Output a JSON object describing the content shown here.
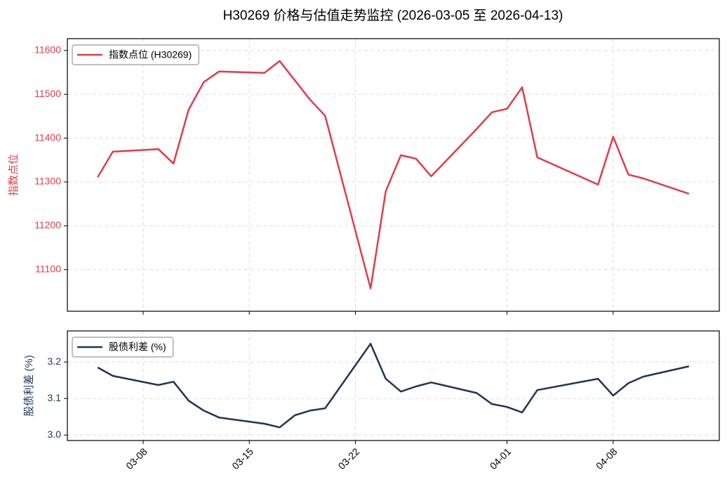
{
  "chart_data": [
    {
      "type": "line",
      "title": "H30269 价格与估值走势监控 (2026-03-05 至 2026-04-13)",
      "ylabel": "指数点位",
      "x": [
        "03-05",
        "03-06",
        "03-09",
        "03-10",
        "03-11",
        "03-12",
        "03-13",
        "03-16",
        "03-17",
        "03-18",
        "03-19",
        "03-20",
        "03-23",
        "03-24",
        "03-25",
        "03-26",
        "03-27",
        "03-30",
        "03-31",
        "04-01",
        "04-02",
        "04-03",
        "04-07",
        "04-08",
        "04-09",
        "04-10",
        "04-13"
      ],
      "xlim": [
        "03-03",
        "04-15"
      ],
      "xticks": [
        "03-08",
        "03-15",
        "03-22",
        "04-01",
        "04-08"
      ],
      "ylim": [
        11005,
        11627
      ],
      "yticks": [
        11100,
        11200,
        11300,
        11400,
        11500,
        11600
      ],
      "grid": true,
      "legend": "upper left",
      "series": [
        {
          "name": "指数点位 (H30269)",
          "color": "#e03c4b",
          "values": [
            11311,
            11369,
            11375,
            11342,
            11465,
            11528,
            11552,
            11549,
            11576,
            11532,
            11488,
            11451,
            11057,
            11279,
            11361,
            11353,
            11313,
            11421,
            11459,
            11467,
            11516,
            11356,
            11294,
            11403,
            11317,
            11308,
            11273
          ]
        }
      ]
    },
    {
      "type": "line",
      "ylabel": "股债利差 (%)",
      "x": [
        "03-05",
        "03-06",
        "03-09",
        "03-10",
        "03-11",
        "03-12",
        "03-13",
        "03-16",
        "03-17",
        "03-18",
        "03-19",
        "03-20",
        "03-23",
        "03-24",
        "03-25",
        "03-26",
        "03-27",
        "03-30",
        "03-31",
        "04-01",
        "04-02",
        "04-03",
        "04-07",
        "04-08",
        "04-09",
        "04-10",
        "04-13"
      ],
      "xlim": [
        "03-03",
        "04-15"
      ],
      "xticks": [
        "03-08",
        "03-15",
        "03-22",
        "04-01",
        "04-08"
      ],
      "ylim": [
        2.985,
        3.285
      ],
      "yticks": [
        {
          "value": 3.0,
          "label": "3.0"
        },
        {
          "value": 3.1,
          "label": "3.1"
        },
        {
          "value": 3.2,
          "label": "3.2"
        }
      ],
      "grid": true,
      "legend": "upper left",
      "series": [
        {
          "name": "股债利差 (%)",
          "color": "#1f3556",
          "values": [
            3.185,
            3.162,
            3.137,
            3.146,
            3.094,
            3.067,
            3.048,
            3.031,
            3.021,
            3.054,
            3.067,
            3.073,
            3.25,
            3.154,
            3.119,
            3.133,
            3.144,
            3.115,
            3.085,
            3.077,
            3.062,
            3.123,
            3.154,
            3.108,
            3.142,
            3.16,
            3.188
          ]
        }
      ]
    }
  ]
}
